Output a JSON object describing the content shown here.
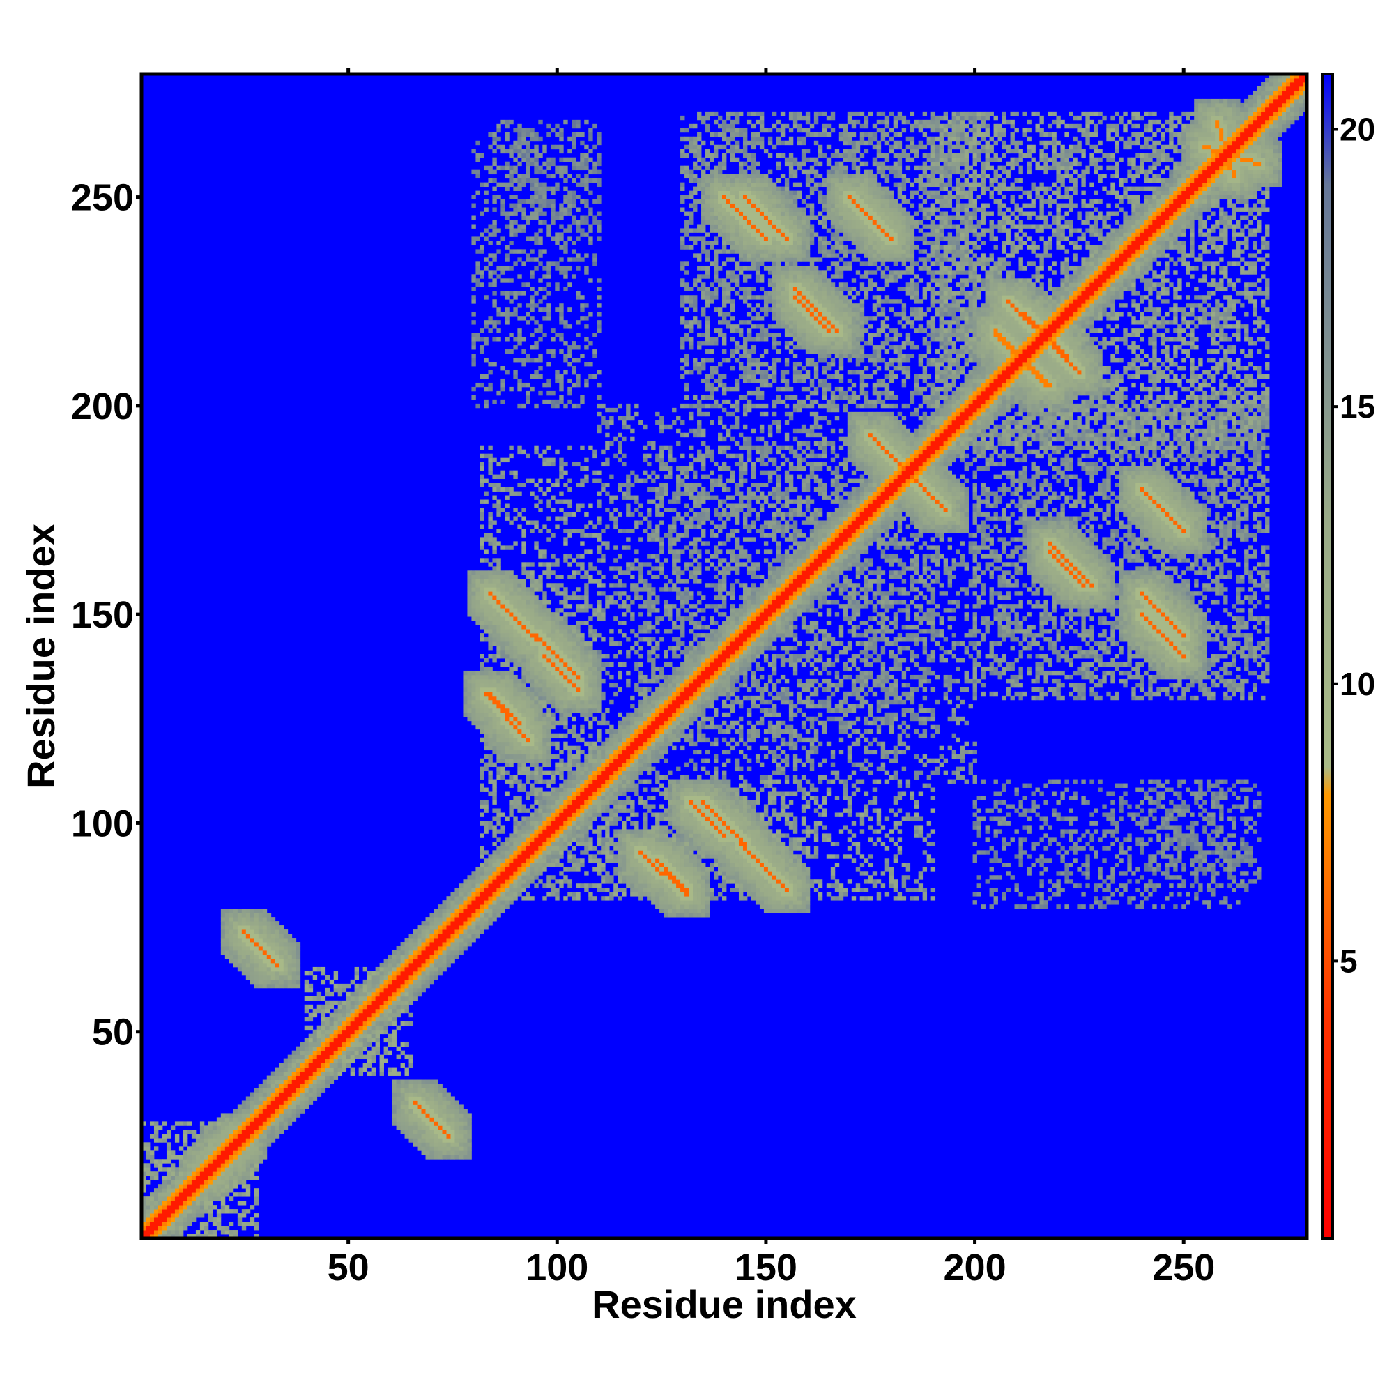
{
  "chart_data": {
    "type": "heatmap",
    "title": "",
    "xlabel": "Residue index",
    "ylabel": "Residue index",
    "n_residues": 279,
    "xlim": [
      1,
      279
    ],
    "ylim": [
      1,
      279
    ],
    "x_ticks": [
      50,
      100,
      150,
      200,
      250
    ],
    "y_ticks": [
      50,
      100,
      150,
      200,
      250
    ],
    "x_tick_labels": [
      "50",
      "100",
      "150",
      "200",
      "250"
    ],
    "y_tick_labels": [
      "50",
      "100",
      "150",
      "200",
      "250"
    ],
    "symmetric": true,
    "colorbar": {
      "range": [
        0,
        21
      ],
      "ticks": [
        5,
        10,
        15,
        20
      ],
      "tick_labels": [
        "5",
        "10",
        "15",
        "20"
      ],
      "stops": [
        {
          "value": 0,
          "color": "#ff0000"
        },
        {
          "value": 4,
          "color": "#ff3300"
        },
        {
          "value": 6,
          "color": "#ff6600"
        },
        {
          "value": 8,
          "color": "#ff9900"
        },
        {
          "value": 8.5,
          "color": "#aabb88"
        },
        {
          "value": 13,
          "color": "#99aa88"
        },
        {
          "value": 19,
          "color": "#667799"
        },
        {
          "value": 21,
          "color": "#0000ff"
        }
      ]
    },
    "background_value": 21,
    "background_color": "#0000ff",
    "diagonal_band": {
      "start": 1,
      "end": 279,
      "width": 3,
      "value": 2
    },
    "contact_segments": [
      {
        "i1": 25,
        "i2": 33,
        "j1": 74,
        "j2": 66,
        "value": 6
      },
      {
        "i1": 15,
        "i2": 25,
        "j1": 15,
        "j2": 25,
        "value": 7
      },
      {
        "i1": 84,
        "i2": 95,
        "j1": 155,
        "j2": 144,
        "value": 6
      },
      {
        "i1": 97,
        "i2": 105,
        "j1": 140,
        "j2": 132,
        "value": 6
      },
      {
        "i1": 84,
        "i2": 91,
        "j1": 131,
        "j2": 124,
        "value": 6
      },
      {
        "i1": 120,
        "i2": 131,
        "j1": 93,
        "j2": 83,
        "value": 6
      },
      {
        "i1": 135,
        "i2": 155,
        "j1": 105,
        "j2": 84,
        "value": 6
      },
      {
        "i1": 140,
        "i2": 150,
        "j1": 250,
        "j2": 240,
        "value": 6
      },
      {
        "i1": 157,
        "i2": 167,
        "j1": 228,
        "j2": 218,
        "value": 6
      },
      {
        "i1": 170,
        "i2": 180,
        "j1": 250,
        "j2": 240,
        "value": 6
      },
      {
        "i1": 175,
        "i2": 188,
        "j1": 193,
        "j2": 180,
        "value": 6
      },
      {
        "i1": 212,
        "i2": 225,
        "j1": 222,
        "j2": 208,
        "value": 6
      },
      {
        "i1": 218,
        "i2": 226,
        "j1": 165,
        "j2": 157,
        "value": 6
      },
      {
        "i1": 240,
        "i2": 250,
        "j1": 180,
        "j2": 170,
        "value": 6
      },
      {
        "i1": 240,
        "i2": 250,
        "j1": 155,
        "j2": 145,
        "value": 6
      },
      {
        "i1": 205,
        "i2": 218,
        "j1": 217,
        "j2": 205,
        "value": 7
      },
      {
        "i1": 255,
        "i2": 268,
        "j1": 262,
        "j2": 258,
        "value": 7
      }
    ],
    "contact_blocks": [
      {
        "x": [
          1,
          28
        ],
        "y": [
          1,
          28
        ],
        "value": 12
      },
      {
        "x": [
          40,
          65
        ],
        "y": [
          40,
          65
        ],
        "value": 12
      },
      {
        "x": [
          82,
          110
        ],
        "y": [
          82,
          160
        ],
        "value": 13
      },
      {
        "x": [
          110,
          190
        ],
        "y": [
          82,
          110
        ],
        "value": 13
      },
      {
        "x": [
          120,
          200
        ],
        "y": [
          110,
          190
        ],
        "value": 14
      },
      {
        "x": [
          130,
          200
        ],
        "y": [
          200,
          270
        ],
        "value": 14
      },
      {
        "x": [
          200,
          270
        ],
        "y": [
          130,
          200
        ],
        "value": 14
      },
      {
        "x": [
          190,
          270
        ],
        "y": [
          190,
          270
        ],
        "value": 13
      },
      {
        "x": [
          80,
          110
        ],
        "y": [
          200,
          265
        ],
        "value": 15
      },
      {
        "x": [
          240,
          268
        ],
        "y": [
          85,
          110
        ],
        "value": 15
      }
    ]
  }
}
